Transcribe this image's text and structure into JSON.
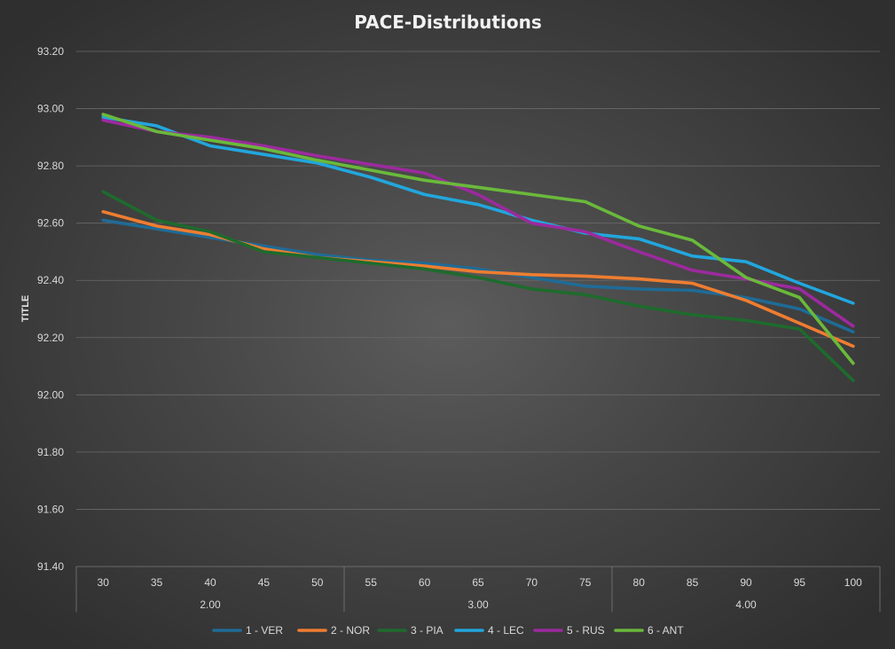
{
  "chart_data": {
    "type": "line",
    "title": "PACE-Distributions",
    "xlabel": "",
    "ylabel": "TITLE",
    "ylim": [
      91.4,
      93.2
    ],
    "yticks": [
      "91.40",
      "91.60",
      "91.80",
      "92.00",
      "92.20",
      "92.40",
      "92.60",
      "92.80",
      "93.00",
      "93.20"
    ],
    "categories": [
      "30",
      "35",
      "40",
      "45",
      "50",
      "55",
      "60",
      "65",
      "70",
      "75",
      "80",
      "85",
      "90",
      "95",
      "100"
    ],
    "groups": [
      {
        "label": "2.00",
        "span": 5
      },
      {
        "label": "3.00",
        "span": 5
      },
      {
        "label": "4.00",
        "span": 5
      }
    ],
    "grid": true,
    "legend": "bottom",
    "series": [
      {
        "name": "1 - VER",
        "color": "#1f6b96",
        "values": [
          92.61,
          92.58,
          92.55,
          92.52,
          92.49,
          92.47,
          92.46,
          92.44,
          92.41,
          92.38,
          92.37,
          92.365,
          92.34,
          92.3,
          92.22
        ]
      },
      {
        "name": "2 - NOR",
        "color": "#ee7d31",
        "values": [
          92.64,
          92.59,
          92.56,
          92.51,
          92.48,
          92.465,
          92.45,
          92.43,
          92.42,
          92.415,
          92.405,
          92.39,
          92.33,
          92.25,
          92.17
        ]
      },
      {
        "name": "3 - PIA",
        "color": "#1e6b2d",
        "values": [
          92.71,
          92.61,
          92.57,
          92.5,
          92.48,
          92.46,
          92.44,
          92.41,
          92.37,
          92.35,
          92.31,
          92.28,
          92.26,
          92.23,
          92.05
        ]
      },
      {
        "name": "4 - LEC",
        "color": "#22a6dd",
        "values": [
          92.97,
          92.94,
          92.87,
          92.84,
          92.81,
          92.76,
          92.7,
          92.665,
          92.61,
          92.565,
          92.545,
          92.485,
          92.465,
          92.39,
          92.32
        ]
      },
      {
        "name": "5 - RUS",
        "color": "#9c2a9e",
        "values": [
          92.96,
          92.92,
          92.9,
          92.87,
          92.835,
          92.805,
          92.775,
          92.7,
          92.6,
          92.57,
          92.5,
          92.435,
          92.405,
          92.37,
          92.24
        ]
      },
      {
        "name": "6 - ANT",
        "color": "#6ab93b",
        "values": [
          92.98,
          92.92,
          92.89,
          92.86,
          92.82,
          92.785,
          92.75,
          92.725,
          92.7,
          92.675,
          92.59,
          92.54,
          92.41,
          92.34,
          92.11
        ]
      }
    ]
  }
}
